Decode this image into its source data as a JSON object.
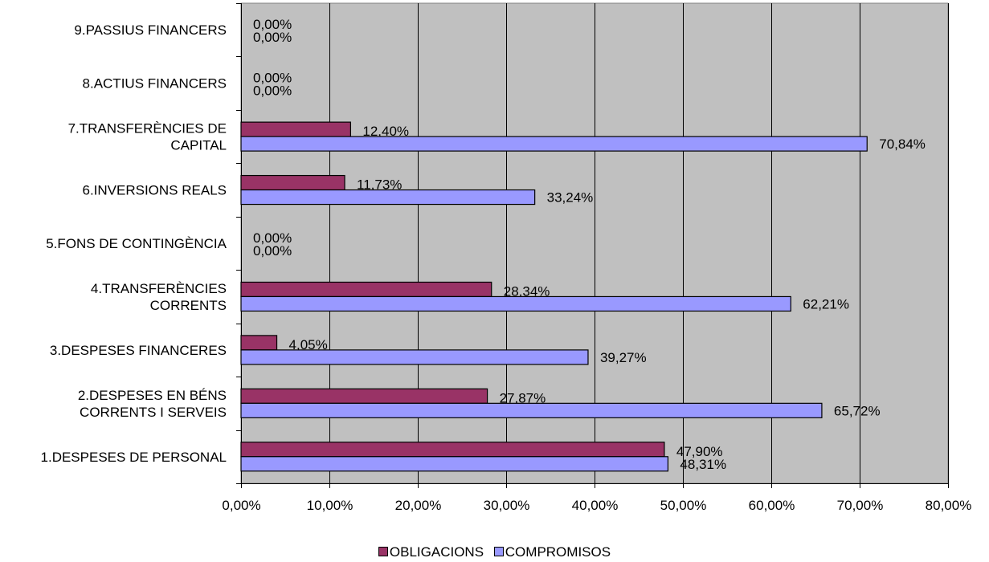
{
  "chart_data": {
    "type": "bar",
    "orientation": "horizontal",
    "categories": [
      "1.DESPESES DE PERSONAL",
      "2.DESPESES EN BÉNS CORRENTS I SERVEIS",
      "3.DESPESES FINANCERES",
      "4.TRANSFERÈNCIES CORRENTS",
      "5.FONS DE CONTINGÈNCIA",
      "6.INVERSIONS REALS",
      "7.TRANSFERÈNCIES DE CAPITAL",
      "8.ACTIUS FINANCERS",
      "9.PASSIUS FINANCERS"
    ],
    "category_lines": [
      [
        "1.DESPESES DE PERSONAL"
      ],
      [
        "2.DESPESES EN BÉNS",
        "CORRENTS I SERVEIS"
      ],
      [
        "3.DESPESES FINANCERES"
      ],
      [
        "4.TRANSFERÈNCIES",
        "CORRENTS"
      ],
      [
        "5.FONS DE CONTINGÈNCIA"
      ],
      [
        "6.INVERSIONS REALS"
      ],
      [
        "7.TRANSFERÈNCIES DE",
        "CAPITAL"
      ],
      [
        "8.ACTIUS FINANCERS"
      ],
      [
        "9.PASSIUS FINANCERS"
      ]
    ],
    "series": [
      {
        "name": "OBLIGACIONS",
        "color": "#993366",
        "values": [
          47.9,
          27.87,
          4.05,
          28.34,
          0.0,
          11.73,
          12.4,
          0.0,
          0.0
        ],
        "labels": [
          "47,90%",
          "27,87%",
          "4,05%",
          "28,34%",
          "0,00%",
          "11,73%",
          "12,40%",
          "0,00%",
          "0,00%"
        ]
      },
      {
        "name": "COMPROMISOS",
        "color": "#9999ff",
        "values": [
          48.31,
          65.72,
          39.27,
          62.21,
          0.0,
          33.24,
          70.84,
          0.0,
          0.0
        ],
        "labels": [
          "48,31%",
          "65,72%",
          "39,27%",
          "62,21%",
          "0,00%",
          "33,24%",
          "70,84%",
          "0,00%",
          "0,00%"
        ]
      }
    ],
    "x_ticks": [
      0,
      10,
      20,
      30,
      40,
      50,
      60,
      70,
      80
    ],
    "x_tick_labels": [
      "0,00%",
      "10,00%",
      "20,00%",
      "30,00%",
      "40,00%",
      "50,00%",
      "60,00%",
      "70,00%",
      "80,00%"
    ],
    "xlim": [
      0,
      80
    ],
    "grid": true,
    "plot_background": "#c0c0c0",
    "legend_position": "bottom",
    "title": "",
    "xlabel": "",
    "ylabel": ""
  }
}
